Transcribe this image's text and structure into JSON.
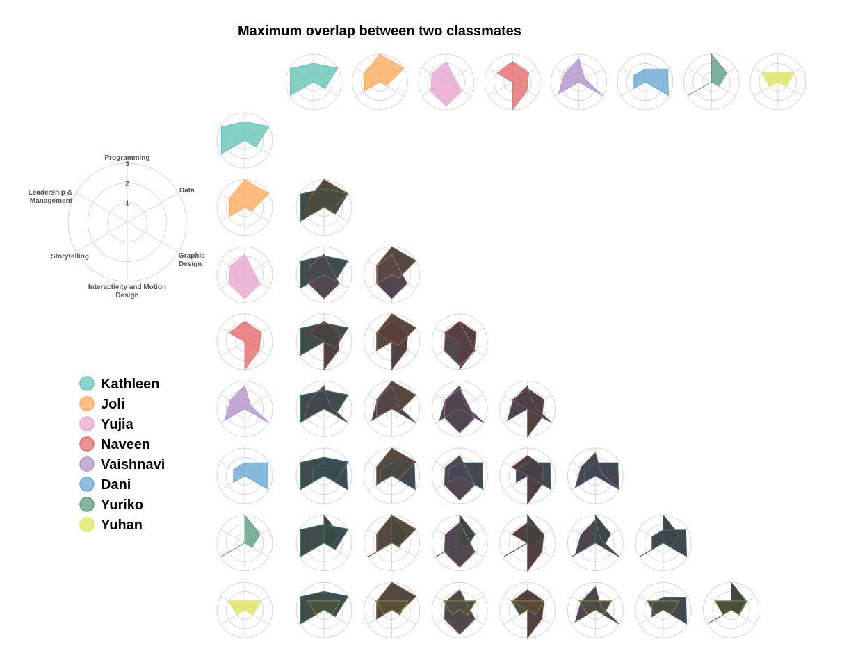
{
  "chart_data": {
    "type": "radar",
    "title": "Maximum overlap between two classmates",
    "axes": [
      "Programming",
      "Data",
      "Graphic Design",
      "Interactivity and Motion Design",
      "Storytelling",
      "Leadership & Management"
    ],
    "axis_label_lines": [
      [
        "Programming"
      ],
      [
        "Data"
      ],
      [
        "Graphic",
        "Design"
      ],
      [
        "Interactivity and Motion",
        "Design"
      ],
      [
        "Storytelling"
      ],
      [
        "Leadership &",
        "Management"
      ]
    ],
    "ticks": [
      "1",
      "2",
      "3"
    ],
    "rlim": [
      0,
      3
    ],
    "legend_placement": "left",
    "series": [
      {
        "name": "Kathleen",
        "color": "#66c5b7",
        "values": [
          2.0,
          3.0,
          1.4,
          0.0,
          2.9,
          2.9
        ]
      },
      {
        "name": "Joli",
        "color": "#fdab5f",
        "values": [
          3.0,
          3.0,
          0.8,
          0.0,
          1.9,
          1.9
        ]
      },
      {
        "name": "Yujia",
        "color": "#e9a5cf",
        "values": [
          2.2,
          1.0,
          1.9,
          2.6,
          1.9,
          1.8
        ]
      },
      {
        "name": "Naveen",
        "color": "#e56b6b",
        "values": [
          2.2,
          2.0,
          1.8,
          3.0,
          0.0,
          1.9
        ]
      },
      {
        "name": "Vaishnavi",
        "color": "#b394cc",
        "values": [
          2.5,
          0.7,
          3.0,
          0.0,
          2.5,
          1.8
        ]
      },
      {
        "name": "Dani",
        "color": "#6aa9d6",
        "values": [
          1.4,
          2.8,
          2.9,
          0.0,
          1.4,
          1.4
        ]
      },
      {
        "name": "Yuriko",
        "color": "#5e9e7f",
        "values": [
          3.0,
          1.9,
          0.9,
          0.0,
          2.9,
          0.0
        ]
      },
      {
        "name": "Yuhan",
        "color": "#dde55e",
        "values": [
          1.0,
          2.0,
          1.0,
          0.0,
          1.0,
          2.0
        ]
      }
    ]
  }
}
